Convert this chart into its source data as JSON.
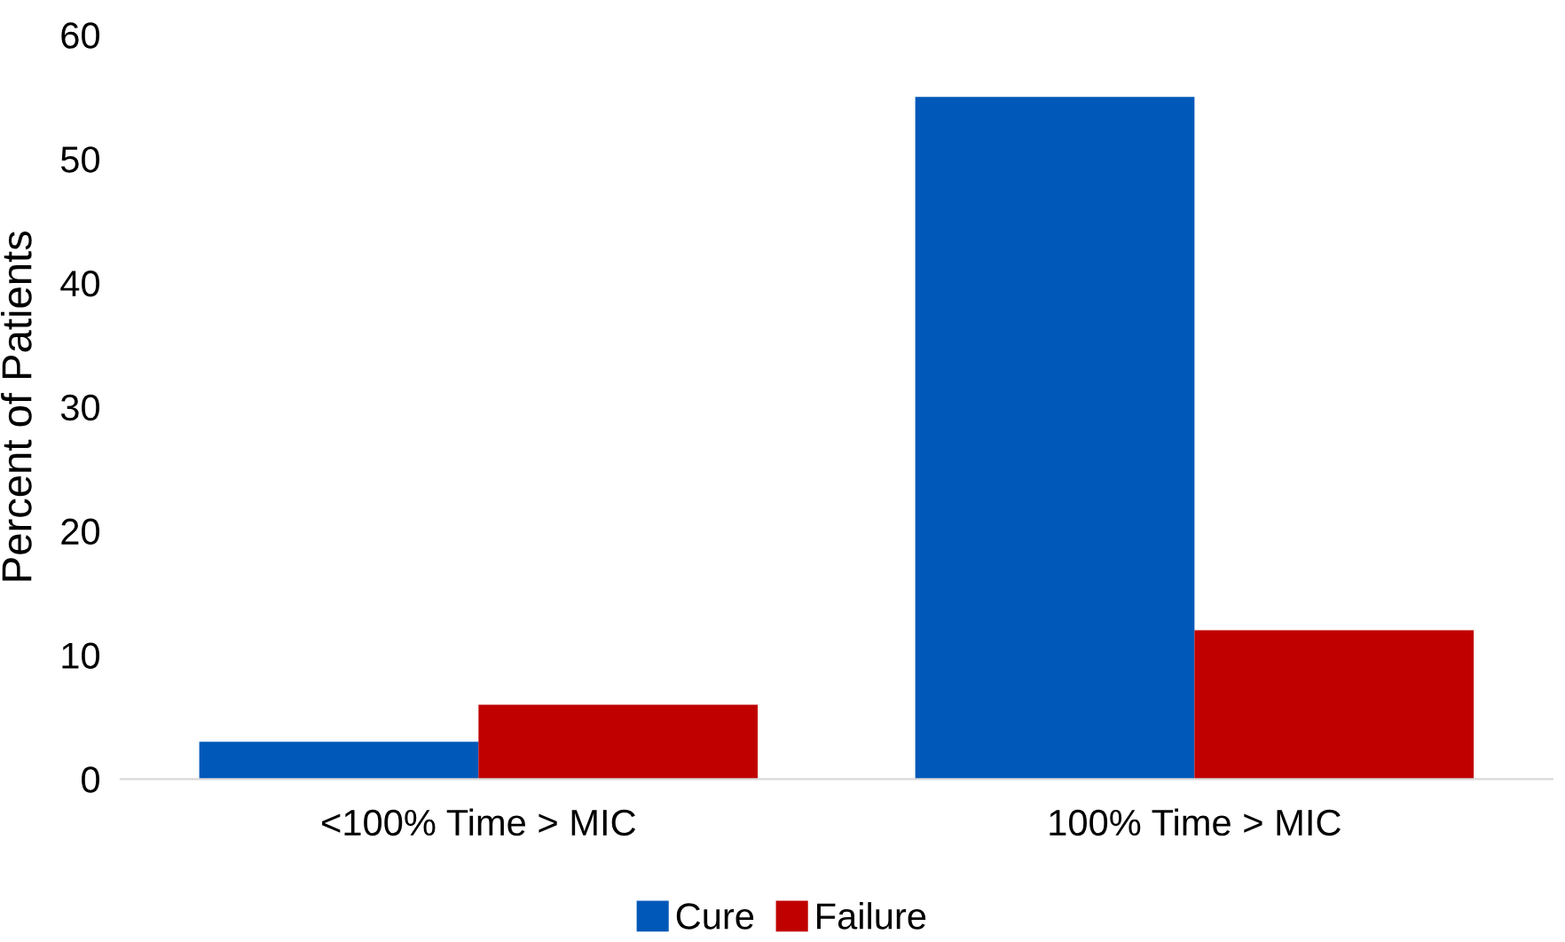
{
  "chart_data": {
    "type": "bar",
    "ylabel": "Percent of Patients",
    "categories": [
      "<100% Time > MIC",
      "100% Time > MIC"
    ],
    "series": [
      {
        "name": "Cure",
        "color": "#0058b8",
        "values": [
          3,
          55
        ]
      },
      {
        "name": "Failure",
        "color": "#c00000",
        "values": [
          6,
          12
        ]
      }
    ],
    "ylim": [
      0,
      60
    ],
    "yticks": [
      0,
      10,
      20,
      30,
      40,
      50,
      60
    ],
    "grid": false,
    "legend": "bottom"
  }
}
